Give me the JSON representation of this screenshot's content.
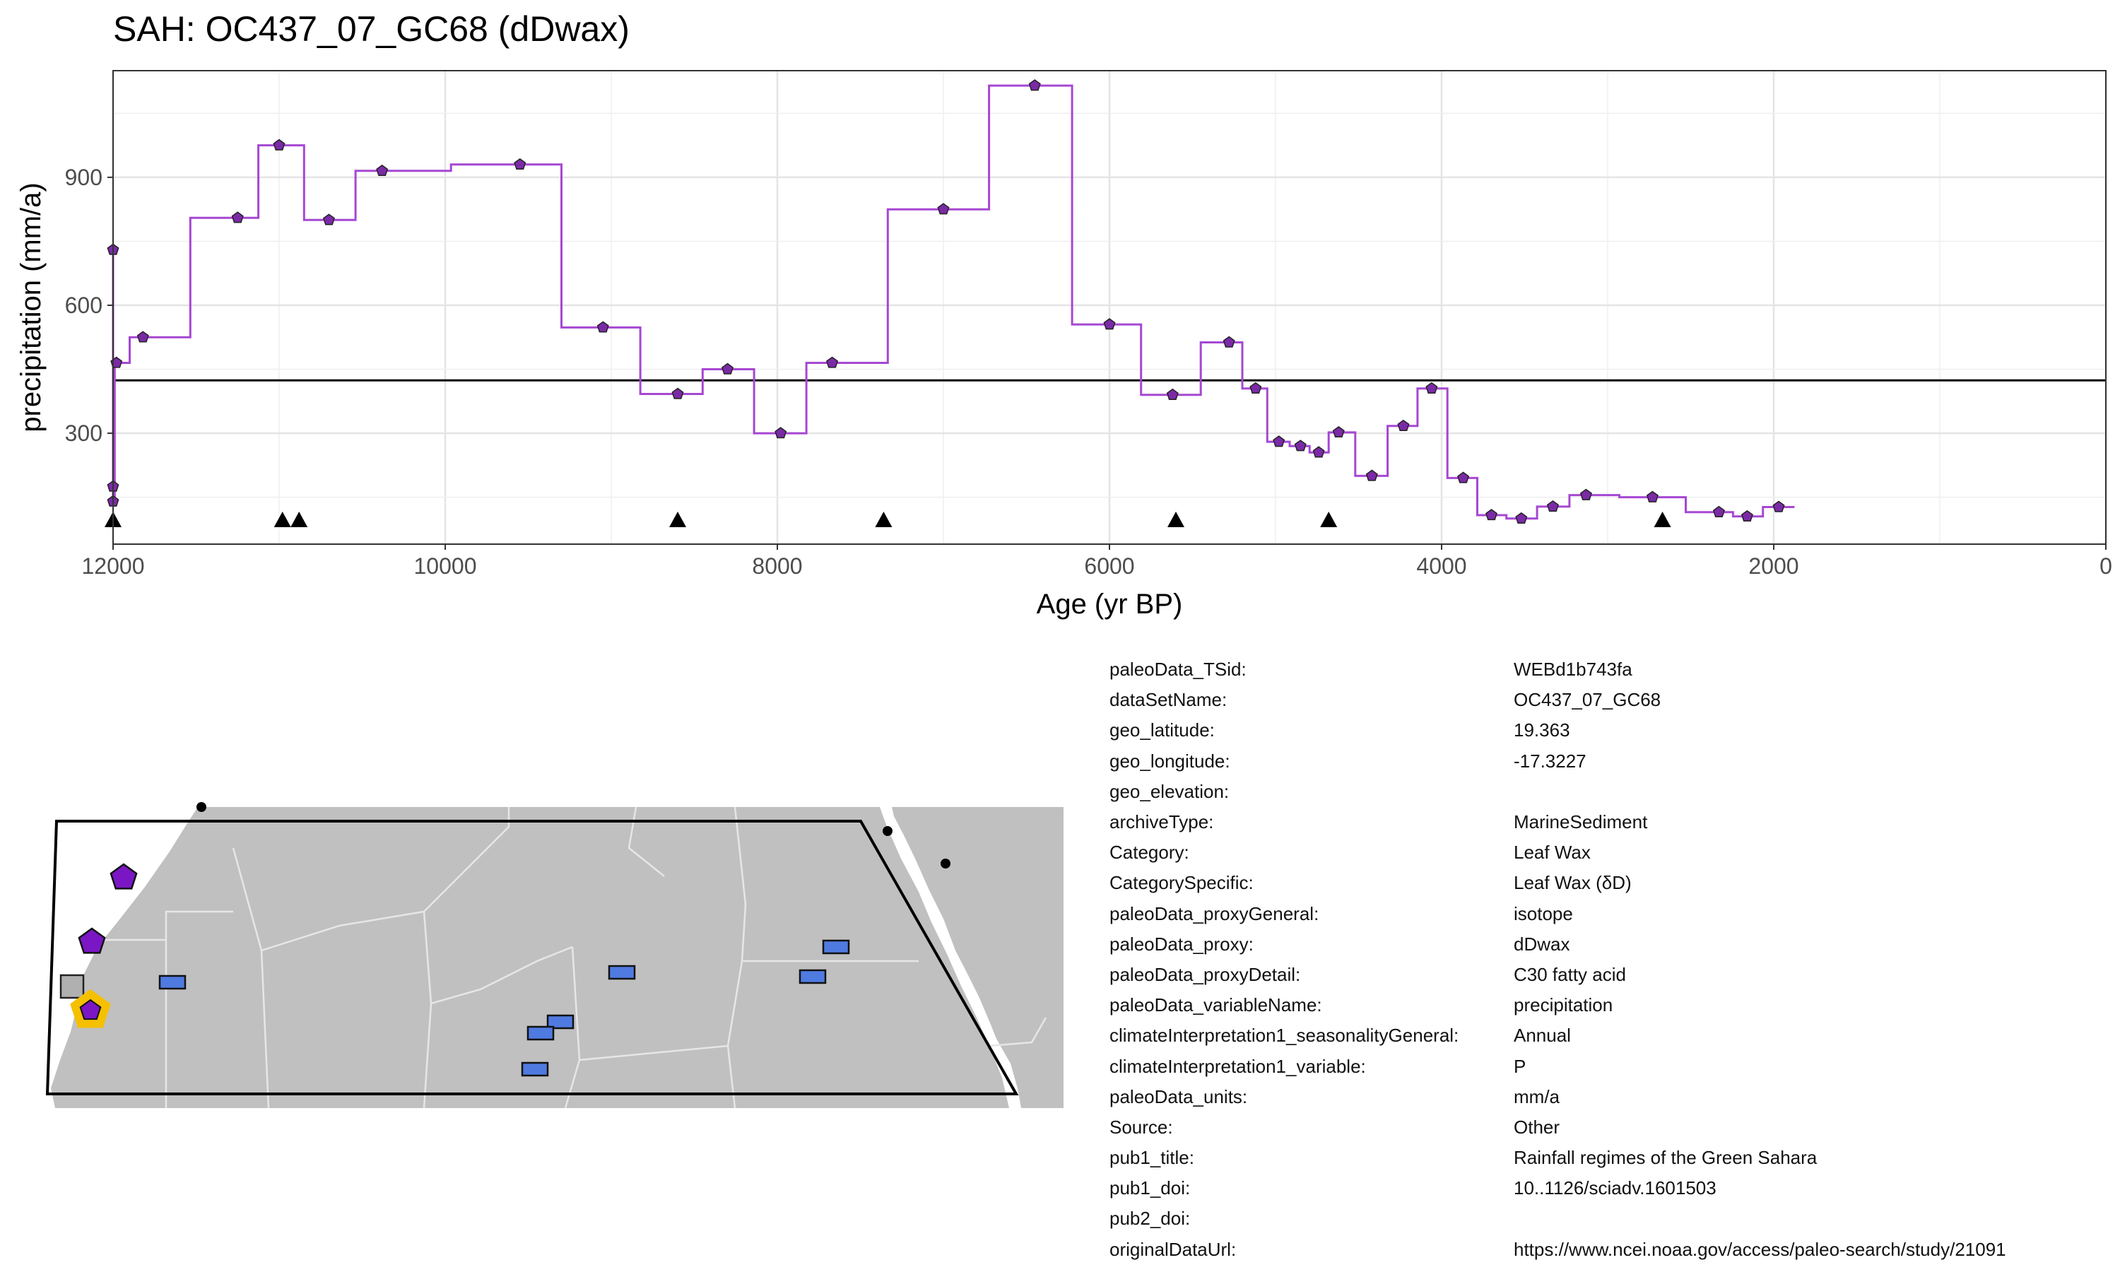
{
  "title": "SAH: OC437_07_GC68 (dDwax)",
  "chart_data": {
    "type": "line",
    "step": true,
    "xlabel": "Age (yr BP)",
    "ylabel": "precipitation (mm/a)",
    "xlim": [
      12000,
      0
    ],
    "ylim": [
      40,
      1150
    ],
    "xticks": [
      12000,
      10000,
      8000,
      6000,
      4000,
      2000,
      0
    ],
    "yticks": [
      300,
      600,
      900
    ],
    "grid": true,
    "series": [
      {
        "color": "#a647d2",
        "marker_color": "#7b2aa6",
        "x": [
          12000,
          12000,
          12000,
          11980,
          11820,
          11250,
          11000,
          10700,
          10380,
          9550,
          9050,
          8600,
          8300,
          7980,
          7670,
          7000,
          6450,
          6000,
          5620,
          5280,
          5120,
          4980,
          4850,
          4740,
          4620,
          4420,
          4230,
          4060,
          3870,
          3700,
          3520,
          3330,
          3130,
          2730,
          2330,
          2160,
          1970
        ],
        "y": [
          730,
          175,
          140,
          465,
          525,
          805,
          975,
          800,
          915,
          930,
          548,
          392,
          450,
          300,
          465,
          825,
          1115,
          555,
          390,
          513,
          405,
          280,
          270,
          255,
          302,
          200,
          317,
          405,
          195,
          108,
          100,
          128,
          155,
          150,
          115,
          105,
          127
        ]
      }
    ],
    "reference_line": {
      "y": 424,
      "color": "#000000"
    },
    "age_markers": [
      12000,
      10980,
      10880,
      8600,
      7360,
      5600,
      4680,
      2670
    ]
  },
  "map": {
    "land_color": "#c0c0c0",
    "border_color": "#e6e6e6",
    "region_outline": "#000000",
    "markers": [
      {
        "shape": "pentagon",
        "color": "#7b16c4"
      },
      {
        "shape": "pentagon",
        "color": "#7b16c4"
      },
      {
        "shape": "square",
        "color": "#b0b0b0"
      },
      {
        "shape": "pentagon-highlight",
        "color": "#7b16c4",
        "ring": "#f5c000"
      },
      {
        "shape": "rect",
        "color": "#4f7ae0"
      },
      {
        "shape": "rect",
        "color": "#4f7ae0"
      },
      {
        "shape": "rect",
        "color": "#4f7ae0"
      },
      {
        "shape": "rect",
        "color": "#4f7ae0"
      },
      {
        "shape": "rect",
        "color": "#4f7ae0"
      },
      {
        "shape": "rect",
        "color": "#4f7ae0"
      },
      {
        "shape": "rect",
        "color": "#4f7ae0"
      },
      {
        "shape": "dot",
        "color": "#000000"
      },
      {
        "shape": "dot",
        "color": "#000000"
      },
      {
        "shape": "dot",
        "color": "#000000"
      }
    ]
  },
  "metadata": [
    {
      "key": "paleoData_TSid:",
      "value": "WEBd1b743fa"
    },
    {
      "key": "dataSetName:",
      "value": "OC437_07_GC68"
    },
    {
      "key": "geo_latitude:",
      "value": "19.363"
    },
    {
      "key": "geo_longitude:",
      "value": "-17.3227"
    },
    {
      "key": "geo_elevation:",
      "value": ""
    },
    {
      "key": "archiveType:",
      "value": "MarineSediment"
    },
    {
      "key": "Category:",
      "value": "Leaf Wax"
    },
    {
      "key": "CategorySpecific:",
      "value": "Leaf Wax (δD)"
    },
    {
      "key": "paleoData_proxyGeneral:",
      "value": "isotope"
    },
    {
      "key": "paleoData_proxy:",
      "value": "dDwax"
    },
    {
      "key": "paleoData_proxyDetail:",
      "value": "C30 fatty acid"
    },
    {
      "key": "paleoData_variableName:",
      "value": "precipitation"
    },
    {
      "key": "climateInterpretation1_seasonalityGeneral:",
      "value": "Annual"
    },
    {
      "key": "climateInterpretation1_variable:",
      "value": "P"
    },
    {
      "key": "paleoData_units:",
      "value": "mm/a"
    },
    {
      "key": "Source:",
      "value": "Other"
    },
    {
      "key": "pub1_title:",
      "value": "Rainfall regimes of the Green Sahara"
    },
    {
      "key": "pub1_doi:",
      "value": "10..1126/sciadv.1601503"
    },
    {
      "key": "pub2_doi:",
      "value": ""
    },
    {
      "key": "originalDataUrl:",
      "value": "https://www.ncei.noaa.gov/access/paleo-search/study/21091"
    }
  ]
}
